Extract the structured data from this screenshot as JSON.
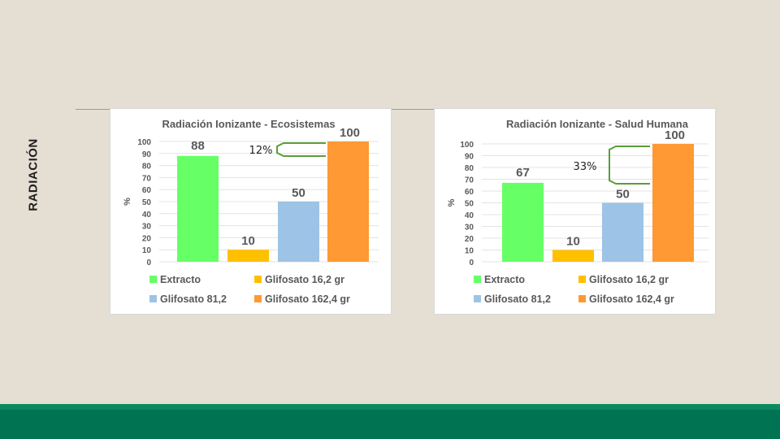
{
  "slide": {
    "title": "RADIACIÓN"
  },
  "colors": {
    "background": "#e5ded3",
    "footer": "#007352",
    "Extracto": "#66ff66",
    "Glifosato 16,2 gr": "#ffc000",
    "Glifosato 81,2": "#9dc3e6",
    "Glifosato 162,4 gr": "#ff9933",
    "bracket": "#5a9e3a"
  },
  "chart_data": [
    {
      "type": "bar",
      "title": "Radiación Ionizante - Ecosistemas",
      "ylabel": "%",
      "xlabel": "",
      "ylim": [
        0,
        100
      ],
      "yticks": [
        0,
        10,
        20,
        30,
        40,
        50,
        60,
        70,
        80,
        90,
        100
      ],
      "grid": true,
      "categories": [
        "Extracto",
        "Glifosato 16,2 gr",
        "Glifosato 81,2",
        "Glifosato 162,4 gr"
      ],
      "values": [
        88,
        10,
        50,
        100
      ],
      "data_labels": [
        "88",
        "10",
        "50",
        "100"
      ],
      "legend": [
        "Extracto",
        "Glifosato 16,2 gr",
        "Glifosato 81,2",
        "Glifosato 162,4 gr"
      ],
      "legend_position": "bottom",
      "annotation": {
        "text": "12%",
        "from_value": 88,
        "to_value": 100
      }
    },
    {
      "type": "bar",
      "title": "Radiación Ionizante - Salud Humana",
      "ylabel": "%",
      "xlabel": "",
      "ylim": [
        0,
        100
      ],
      "yticks": [
        0,
        10,
        20,
        30,
        40,
        50,
        60,
        70,
        80,
        90,
        100
      ],
      "grid": true,
      "categories": [
        "Extracto",
        "Glifosato 16,2 gr",
        "Glifosato 81,2",
        "Glifosato 162,4 gr"
      ],
      "values": [
        67,
        10,
        50,
        100
      ],
      "data_labels": [
        "67",
        "10",
        "50",
        "100"
      ],
      "legend": [
        "Extracto",
        "Glifosato 16,2 gr",
        "Glifosato 81,2",
        "Glifosato 162,4 gr"
      ],
      "legend_position": "bottom",
      "annotation": {
        "text": "33%",
        "from_value": 67,
        "to_value": 100
      }
    }
  ]
}
